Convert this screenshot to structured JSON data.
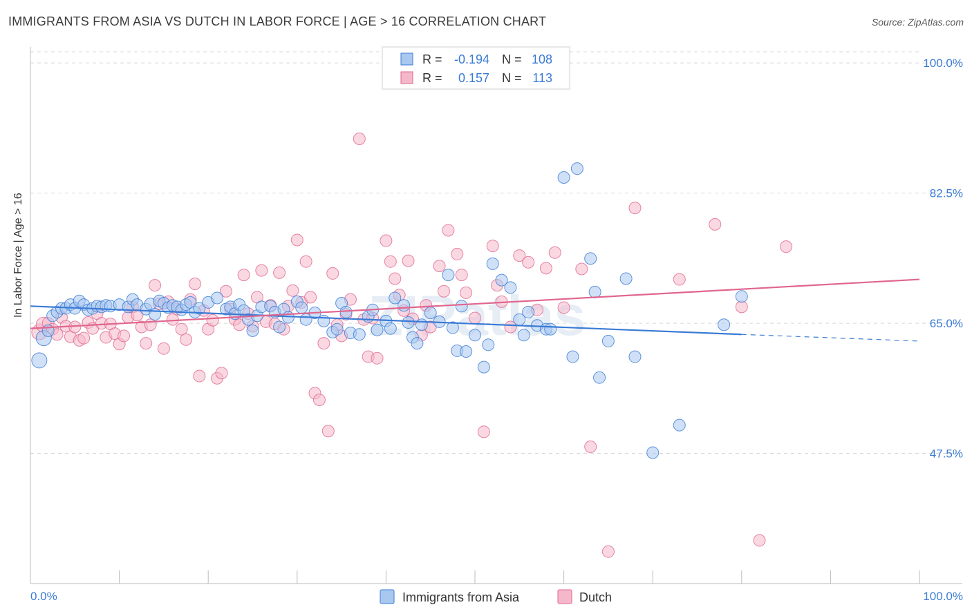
{
  "title": "IMMIGRANTS FROM ASIA VS DUTCH IN LABOR FORCE | AGE > 16 CORRELATION CHART",
  "source": "Source: ZipAtlas.com",
  "watermark": "ZIPatlas",
  "colors": {
    "asia": "#3a7bd5",
    "asia_fill": "#a9c8f0",
    "dutch": "#e0668e",
    "dutch_fill": "#f5b8cb",
    "value_text": "#3a7bd5",
    "grid": "#d8d8d8"
  },
  "legend_top": {
    "rows": [
      {
        "r_label": "R =",
        "r_value": "-0.194",
        "n_label": "N =",
        "n_value": "108"
      },
      {
        "r_label": "R =",
        "r_value": "0.157",
        "n_label": "N =",
        "n_value": "113"
      }
    ]
  },
  "legend_bottom": [
    "Immigrants from Asia",
    "Dutch"
  ],
  "chart_data": {
    "type": "scatter",
    "title": "IMMIGRANTS FROM ASIA VS DUTCH IN LABOR FORCE | AGE > 16 CORRELATION CHART",
    "ylabel": "In Labor Force | Age > 16",
    "xlabel": "",
    "x_tick_labels": [
      "0.0%",
      "100.0%"
    ],
    "y_tick_labels": [
      "100.0%",
      "82.5%",
      "65.0%",
      "47.5%"
    ],
    "y_ticks": [
      100,
      82.5,
      65,
      47.5
    ],
    "xlim": [
      0,
      100
    ],
    "ylim": [
      30,
      101.5
    ],
    "grid": true,
    "legend_position": "top-center",
    "series": [
      {
        "name": "Immigrants from Asia",
        "r": -0.194,
        "n": 108,
        "trend": {
          "x0": 0,
          "y0": 67.3,
          "x1": 80,
          "y1": 63.5,
          "dash_to_x": 100,
          "dash_to_y": 62.6
        },
        "points": [
          [
            1,
            60
          ],
          [
            1.5,
            63
          ],
          [
            2,
            64
          ],
          [
            2.5,
            66
          ],
          [
            3,
            66.5
          ],
          [
            3.5,
            67
          ],
          [
            4,
            67
          ],
          [
            4.5,
            67.5
          ],
          [
            5,
            67
          ],
          [
            5.5,
            68
          ],
          [
            6,
            67.5
          ],
          [
            6.5,
            66.8
          ],
          [
            7,
            67
          ],
          [
            7.5,
            67.3
          ],
          [
            8,
            67.2
          ],
          [
            8.5,
            67.4
          ],
          [
            9,
            67.3
          ],
          [
            10,
            67.5
          ],
          [
            11,
            67.2
          ],
          [
            11.5,
            68.2
          ],
          [
            12,
            67.5
          ],
          [
            13,
            66.9
          ],
          [
            13.5,
            67.6
          ],
          [
            14,
            66.2
          ],
          [
            14.5,
            68
          ],
          [
            15,
            67.7
          ],
          [
            15.5,
            67.1
          ],
          [
            16,
            67.4
          ],
          [
            16.5,
            67.2
          ],
          [
            17,
            66.8
          ],
          [
            17.5,
            67.5
          ],
          [
            18,
            67.8
          ],
          [
            18.5,
            66.5
          ],
          [
            19,
            67
          ],
          [
            20,
            67.8
          ],
          [
            21,
            68.4
          ],
          [
            22,
            66.9
          ],
          [
            22.5,
            67.2
          ],
          [
            23,
            66.3
          ],
          [
            23.5,
            67.5
          ],
          [
            24,
            66.7
          ],
          [
            24.5,
            65.5
          ],
          [
            25,
            64
          ],
          [
            25.5,
            66
          ],
          [
            26,
            67.2
          ],
          [
            27,
            67.3
          ],
          [
            27.5,
            66.5
          ],
          [
            28,
            64.5
          ],
          [
            28.5,
            66.9
          ],
          [
            29,
            65.8
          ],
          [
            30,
            67.9
          ],
          [
            30.5,
            67.1
          ],
          [
            31,
            65.5
          ],
          [
            32,
            66.4
          ],
          [
            33,
            65.3
          ],
          [
            34,
            63.8
          ],
          [
            34.5,
            64.2
          ],
          [
            35,
            67.7
          ],
          [
            35.5,
            66.5
          ],
          [
            36,
            63.7
          ],
          [
            37,
            63.5
          ],
          [
            38,
            65.9
          ],
          [
            38.5,
            66.8
          ],
          [
            39,
            64.1
          ],
          [
            40,
            65.3
          ],
          [
            40.5,
            64.3
          ],
          [
            41,
            68.4
          ],
          [
            42,
            67.4
          ],
          [
            42.5,
            65.1
          ],
          [
            43,
            63.1
          ],
          [
            43.5,
            62.3
          ],
          [
            44,
            64.8
          ],
          [
            45,
            66.4
          ],
          [
            46,
            65.2
          ],
          [
            47,
            71.5
          ],
          [
            47.5,
            64.4
          ],
          [
            48,
            61.3
          ],
          [
            48.5,
            67.3
          ],
          [
            49,
            61.2
          ],
          [
            50,
            63.4
          ],
          [
            51,
            59.1
          ],
          [
            51.5,
            62.1
          ],
          [
            52,
            73
          ],
          [
            53,
            70.8
          ],
          [
            54,
            69.8
          ],
          [
            55,
            65.5
          ],
          [
            55.5,
            63.4
          ],
          [
            56,
            66.5
          ],
          [
            57,
            64.7
          ],
          [
            58,
            64.2
          ],
          [
            58.5,
            64.2
          ],
          [
            60,
            84.6
          ],
          [
            61,
            60.5
          ],
          [
            61.5,
            85.8
          ],
          [
            63,
            73.7
          ],
          [
            63.5,
            69.2
          ],
          [
            64,
            57.7
          ],
          [
            65,
            62.6
          ],
          [
            67,
            71
          ],
          [
            68,
            60.5
          ],
          [
            70,
            47.6
          ],
          [
            73,
            51.3
          ],
          [
            78,
            64.8
          ],
          [
            80,
            68.6
          ]
        ]
      },
      {
        "name": "Dutch",
        "r": 0.157,
        "n": 113,
        "trend": {
          "x0": 0,
          "y0": 64.3,
          "x1": 100,
          "y1": 70.9
        },
        "points": [
          [
            1,
            63.8
          ],
          [
            1.5,
            64.8
          ],
          [
            2,
            65
          ],
          [
            2.5,
            64.2
          ],
          [
            3,
            63.5
          ],
          [
            3.5,
            65.8
          ],
          [
            4,
            64.6
          ],
          [
            4.5,
            63.2
          ],
          [
            5,
            64.5
          ],
          [
            5.5,
            62.7
          ],
          [
            6,
            63
          ],
          [
            6.5,
            65.1
          ],
          [
            7,
            64.3
          ],
          [
            7.5,
            66.3
          ],
          [
            8,
            65
          ],
          [
            8.5,
            63.1
          ],
          [
            9,
            64.9
          ],
          [
            9.5,
            63.6
          ],
          [
            10,
            62.2
          ],
          [
            10.5,
            63.3
          ],
          [
            11,
            65.8
          ],
          [
            11.5,
            67.2
          ],
          [
            12,
            66.1
          ],
          [
            12.5,
            64.5
          ],
          [
            13,
            62.3
          ],
          [
            13.5,
            64.8
          ],
          [
            14,
            70.1
          ],
          [
            14.5,
            67.6
          ],
          [
            15,
            61.6
          ],
          [
            15.5,
            67.9
          ],
          [
            16,
            65.5
          ],
          [
            16.5,
            66.9
          ],
          [
            17,
            64.2
          ],
          [
            17.5,
            62.8
          ],
          [
            18,
            68.2
          ],
          [
            18.5,
            70.3
          ],
          [
            19,
            57.9
          ],
          [
            19.5,
            66.7
          ],
          [
            20,
            64.2
          ],
          [
            20.5,
            65.4
          ],
          [
            21,
            57.6
          ],
          [
            21.5,
            58.3
          ],
          [
            22,
            69.3
          ],
          [
            22.5,
            66.9
          ],
          [
            23,
            65.5
          ],
          [
            23.5,
            64.8
          ],
          [
            24,
            71.5
          ],
          [
            24.5,
            66.3
          ],
          [
            25,
            64.6
          ],
          [
            25.5,
            68.5
          ],
          [
            26,
            72.1
          ],
          [
            26.5,
            65.2
          ],
          [
            27,
            67.4
          ],
          [
            27.5,
            64.9
          ],
          [
            28,
            71.8
          ],
          [
            28.5,
            64.2
          ],
          [
            29,
            67.3
          ],
          [
            29.5,
            69.4
          ],
          [
            30,
            76.2
          ],
          [
            30.5,
            67.8
          ],
          [
            31,
            73.3
          ],
          [
            31.5,
            68.5
          ],
          [
            32,
            55.6
          ],
          [
            32.5,
            54.7
          ],
          [
            33,
            62.3
          ],
          [
            33.5,
            50.5
          ],
          [
            34,
            71.7
          ],
          [
            34.5,
            64.8
          ],
          [
            35,
            63.3
          ],
          [
            35.5,
            66.2
          ],
          [
            36,
            68.2
          ],
          [
            37,
            89.8
          ],
          [
            37.5,
            65.5
          ],
          [
            38,
            60.5
          ],
          [
            38.5,
            65.7
          ],
          [
            39,
            60.3
          ],
          [
            40,
            76.1
          ],
          [
            40.5,
            73.3
          ],
          [
            41,
            71
          ],
          [
            41.5,
            68.8
          ],
          [
            42,
            66.7
          ],
          [
            42.5,
            73.4
          ],
          [
            43,
            65.6
          ],
          [
            44,
            63.4
          ],
          [
            44.5,
            67.4
          ],
          [
            45,
            64.5
          ],
          [
            46,
            72.7
          ],
          [
            46.5,
            69.3
          ],
          [
            47,
            77.5
          ],
          [
            48,
            74.3
          ],
          [
            48.5,
            71.5
          ],
          [
            49,
            69.1
          ],
          [
            50,
            65.7
          ],
          [
            51,
            50.4
          ],
          [
            52,
            75.4
          ],
          [
            52.5,
            70.1
          ],
          [
            53,
            67.9
          ],
          [
            54,
            64.5
          ],
          [
            55,
            74.1
          ],
          [
            56,
            73.2
          ],
          [
            57,
            66.8
          ],
          [
            58,
            72.4
          ],
          [
            59,
            74.5
          ],
          [
            60,
            67.1
          ],
          [
            62,
            72.3
          ],
          [
            63,
            48.4
          ],
          [
            65,
            34.3
          ],
          [
            68,
            80.5
          ],
          [
            73,
            70.9
          ],
          [
            77,
            78.3
          ],
          [
            80,
            67.2
          ],
          [
            82,
            35.8
          ],
          [
            85,
            75.3
          ]
        ]
      }
    ]
  }
}
